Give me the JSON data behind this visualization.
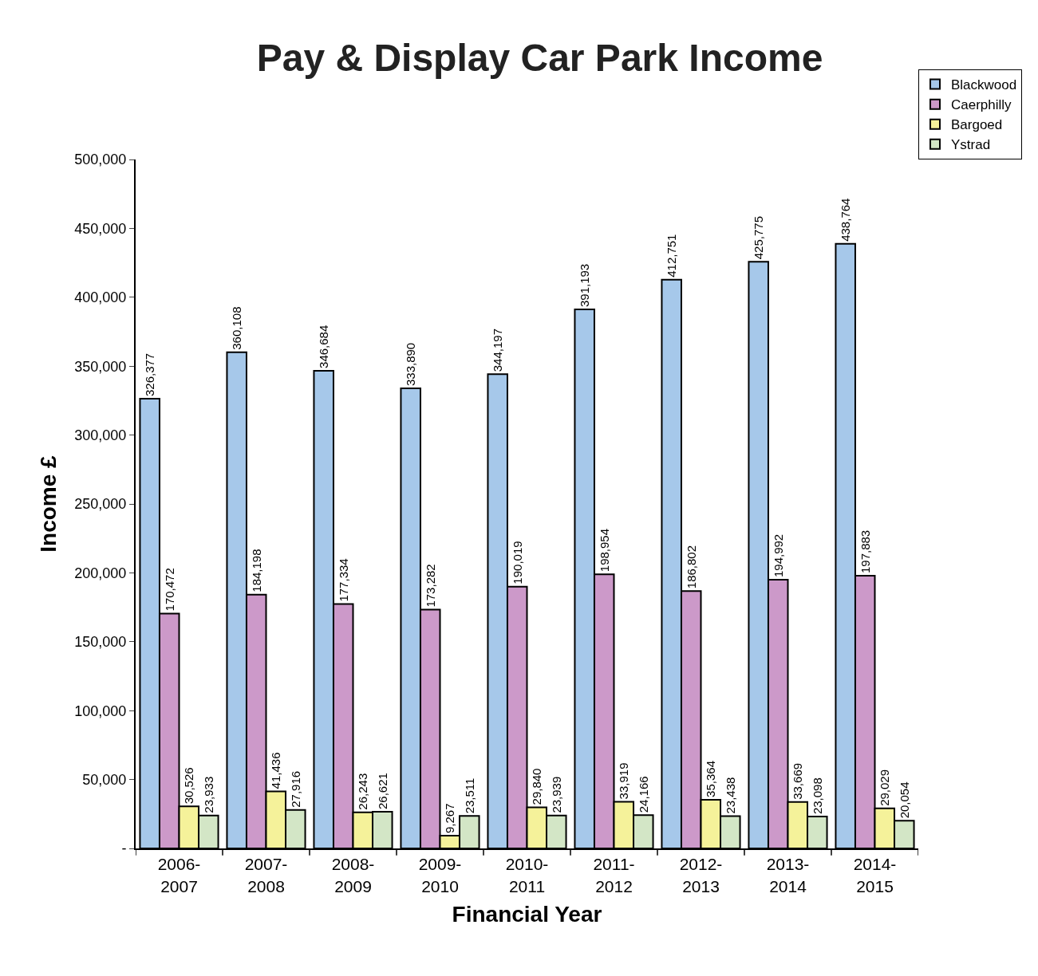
{
  "chart_data": {
    "type": "bar",
    "title": "Pay & Display Car Park Income",
    "xlabel": "Financial Year",
    "ylabel": "Income £",
    "categories": [
      "2006-2007",
      "2007-2008",
      "2008-2009",
      "2009-2010",
      "2010-2011",
      "2011-2012",
      "2012-2013",
      "2013-2014",
      "2014-2015"
    ],
    "series": [
      {
        "name": "Blackwood",
        "color": "#a6c8ea",
        "values": [
          326377,
          360108,
          346684,
          333890,
          344197,
          391193,
          412751,
          425775,
          438764
        ],
        "value_labels": [
          "326,377",
          "360,108",
          "346,684",
          "333,890",
          "344,197",
          "391,193",
          "412,751",
          "425,775",
          "438,764"
        ]
      },
      {
        "name": "Caerphilly",
        "color": "#cc99c9",
        "values": [
          170472,
          184198,
          177334,
          173282,
          190019,
          198954,
          186802,
          194992,
          197883
        ],
        "value_labels": [
          "170,472",
          "184,198",
          "177,334",
          "173,282",
          "190,019",
          "198,954",
          "186,802",
          "194,992",
          "197,883"
        ]
      },
      {
        "name": "Bargoed",
        "color": "#f5f29a",
        "values": [
          30526,
          41436,
          26243,
          9267,
          29840,
          33919,
          35364,
          33669,
          29029
        ],
        "value_labels": [
          "30,526",
          "41,436",
          "26,243",
          "9,267",
          "29,840",
          "33,919",
          "35,364",
          "33,669",
          "29,029"
        ]
      },
      {
        "name": "Ystrad",
        "color": "#d3e6c6",
        "values": [
          23933,
          27916,
          26621,
          23511,
          23939,
          24166,
          23438,
          23098,
          20054
        ],
        "value_labels": [
          "23,933",
          "27,916",
          "26,621",
          "23,511",
          "23,939",
          "24,166",
          "23,438",
          "23,098",
          "20,054"
        ]
      }
    ],
    "ylim": [
      0,
      500000
    ],
    "yticks": [
      {
        "value": 0,
        "label": "-"
      },
      {
        "value": 50000,
        "label": "50,000"
      },
      {
        "value": 100000,
        "label": "100,000"
      },
      {
        "value": 150000,
        "label": "150,000"
      },
      {
        "value": 200000,
        "label": "200,000"
      },
      {
        "value": 250000,
        "label": "250,000"
      },
      {
        "value": 300000,
        "label": "300,000"
      },
      {
        "value": 350000,
        "label": "350,000"
      },
      {
        "value": 400000,
        "label": "400,000"
      },
      {
        "value": 450000,
        "label": "450,000"
      },
      {
        "value": 500000,
        "label": "500,000"
      }
    ],
    "legend": "top right"
  }
}
